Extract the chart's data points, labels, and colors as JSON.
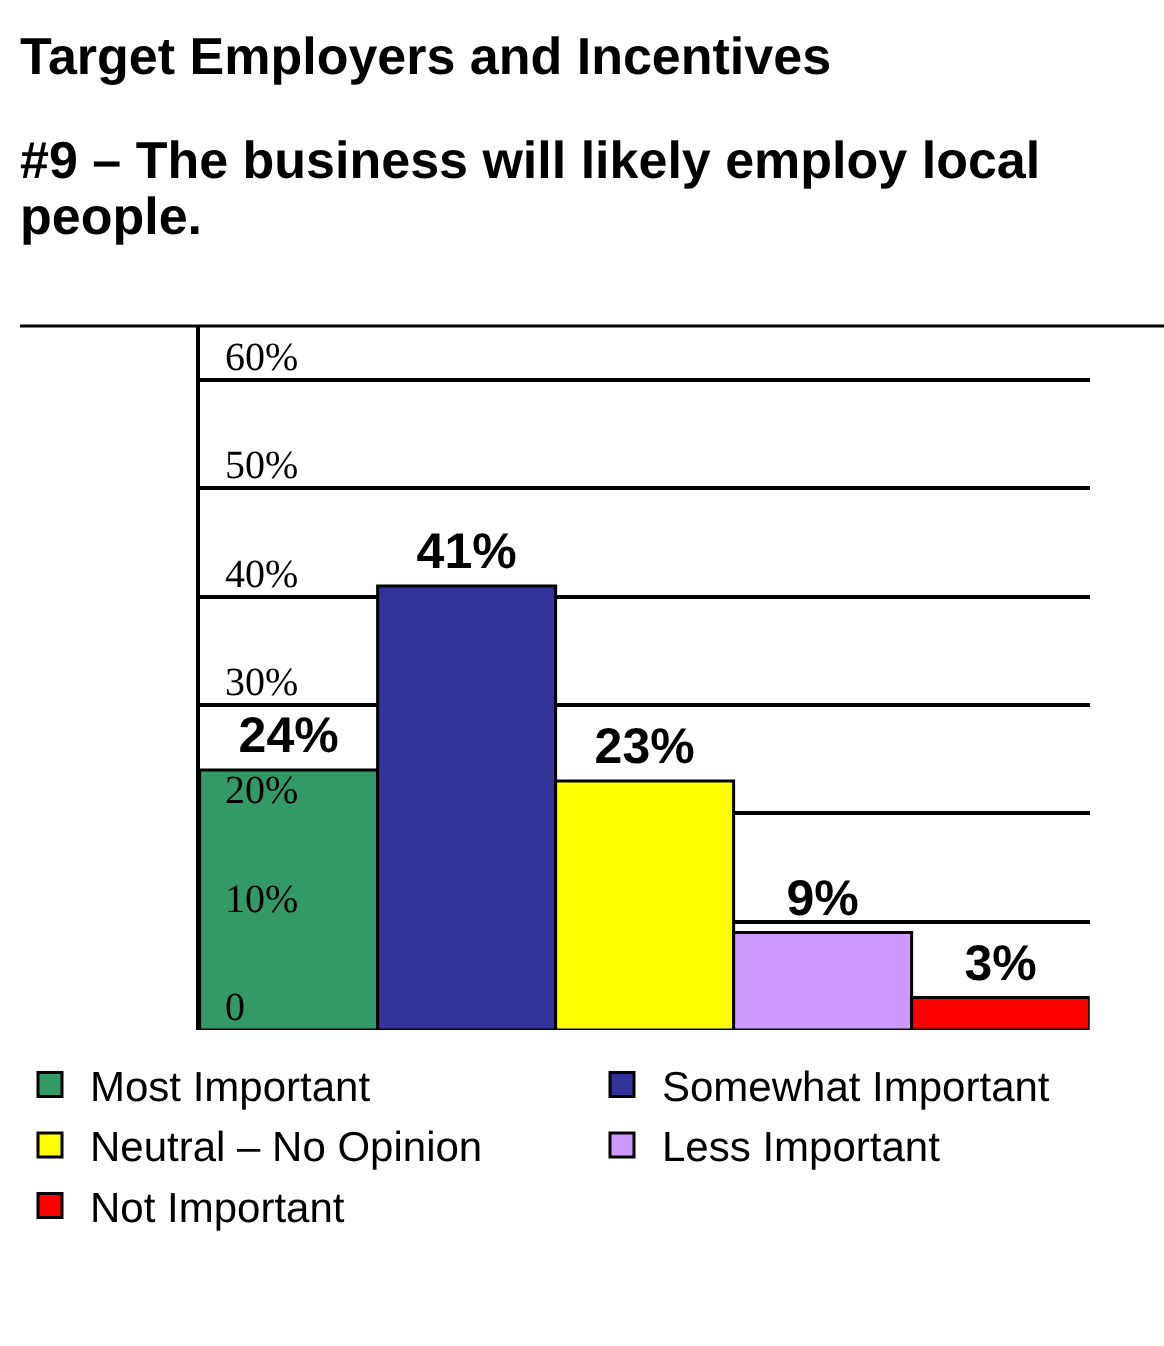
{
  "chart_data": {
    "type": "bar",
    "title": "Target Employers and Incentives",
    "subtitle": "#9 – The business will likely employ local people.",
    "categories": [
      null,
      null,
      null,
      null,
      null
    ],
    "series": [
      {
        "name": "Most Important",
        "color": "#339966",
        "values": [
          24,
          null,
          null,
          null,
          null
        ],
        "value_labels": [
          "24%",
          null,
          null,
          null,
          null
        ]
      },
      {
        "name": "Somewhat Important",
        "color": "#333399",
        "values": [
          null,
          41,
          null,
          null,
          null
        ],
        "value_labels": [
          null,
          "41%",
          null,
          null,
          null
        ]
      },
      {
        "name": "Neutral – No Opinion",
        "color": "#ffff00",
        "values": [
          null,
          null,
          23,
          null,
          null
        ],
        "value_labels": [
          null,
          null,
          "23%",
          null,
          null
        ]
      },
      {
        "name": "Less Important",
        "color": "#cc99ff",
        "values": [
          null,
          null,
          null,
          9,
          null
        ],
        "value_labels": [
          null,
          null,
          null,
          "9%",
          null
        ]
      },
      {
        "name": "Not Important",
        "color": "#ff0000",
        "values": [
          null,
          null,
          null,
          null,
          3
        ],
        "value_labels": [
          null,
          null,
          null,
          null,
          "3%"
        ]
      }
    ],
    "ylim": [
      0,
      65
    ],
    "yticks": [
      0,
      {
        "value": 10,
        "label": "10%"
      },
      {
        "value": 20,
        "label": "20%"
      },
      {
        "value": 30,
        "label": "30%"
      },
      {
        "value": 40,
        "label": "40%"
      },
      {
        "value": 50,
        "label": "50%"
      },
      {
        "value": 60,
        "label": "60%"
      }
    ],
    "grid": "y",
    "legend": "bottom"
  }
}
